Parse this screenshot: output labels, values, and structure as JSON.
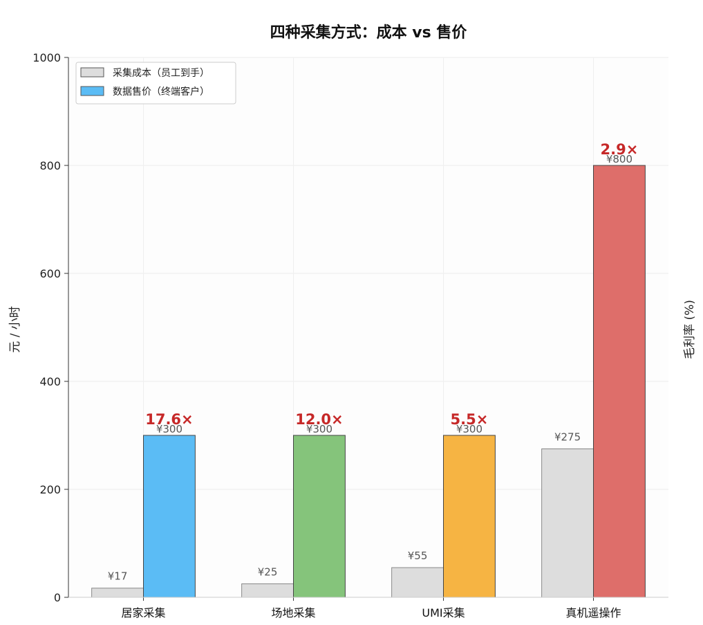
{
  "chart_data": {
    "type": "bar",
    "title": "四种采集方式：成本 vs 售价",
    "ylabel": "元 / 小时",
    "y2label": "毛利率 (%)",
    "ylim": [
      0,
      1000
    ],
    "yticks": [
      0,
      200,
      400,
      600,
      800,
      1000
    ],
    "grid": true,
    "legend_position": "top-left",
    "categories": [
      "居家采集",
      "场地采集",
      "UMI采集",
      "真机遥操作"
    ],
    "series": [
      {
        "name": "采集成本（员工到手）",
        "values": [
          17,
          25,
          55,
          275
        ],
        "labels": [
          "¥17",
          "¥25",
          "¥55",
          "¥275"
        ],
        "color": "#dddddd"
      },
      {
        "name": "数据售价（终端客户）",
        "values": [
          300,
          300,
          300,
          800
        ],
        "labels": [
          "¥300",
          "¥300",
          "¥300",
          "¥800"
        ],
        "colors": [
          "#5bbcf5",
          "#85c47b",
          "#f6b443",
          "#de6e6a"
        ],
        "legend_color": "#5bbcf5"
      }
    ],
    "annotations": [
      "17.6×",
      "12.0×",
      "5.5×",
      "2.9×"
    ],
    "annotation_color": "#c62828"
  }
}
